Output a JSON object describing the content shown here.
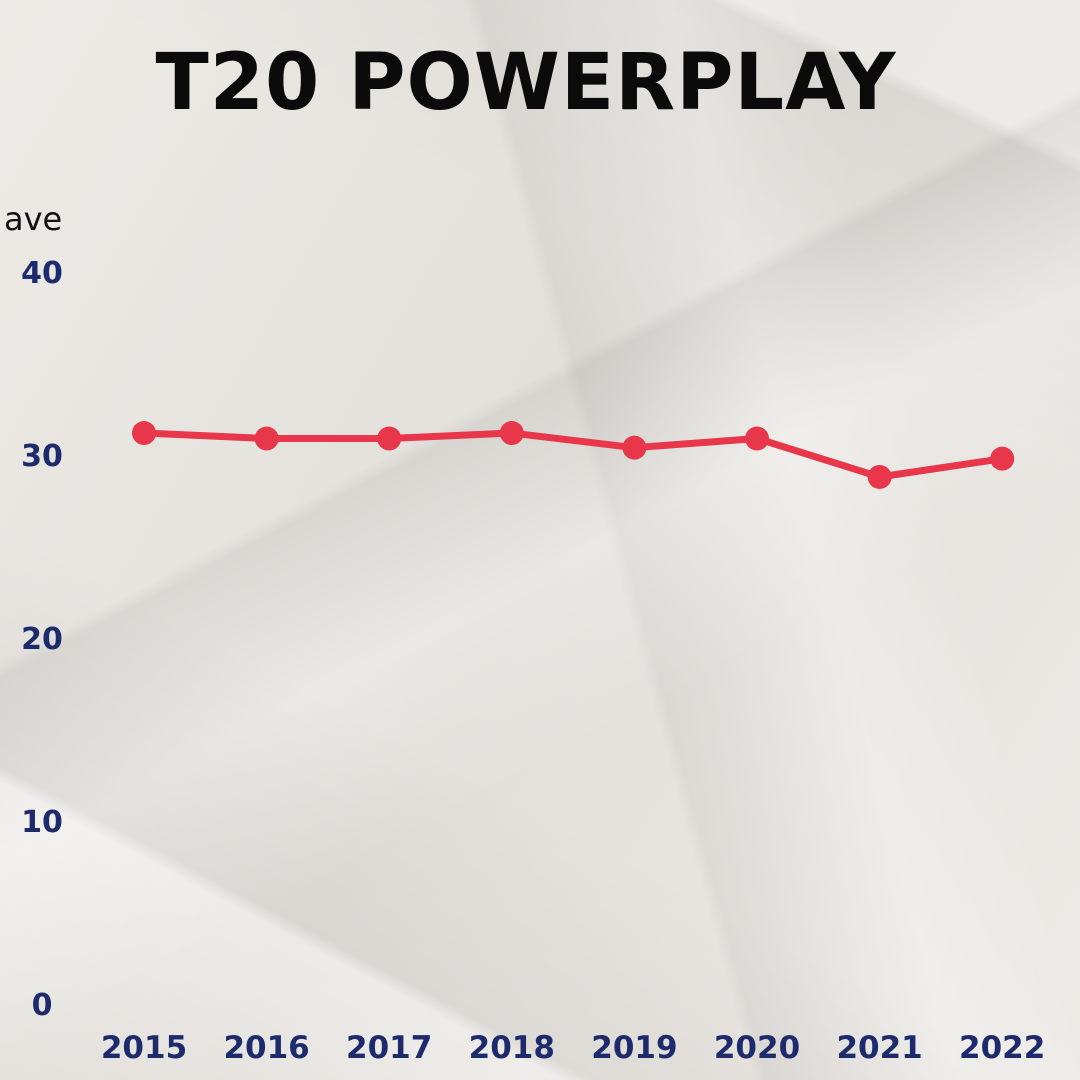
{
  "chart_data": {
    "type": "line",
    "title": "T20 POWERPLAY",
    "ylabel": "ave",
    "xlabel": "",
    "categories": [
      "2015",
      "2016",
      "2017",
      "2018",
      "2019",
      "2020",
      "2021",
      "2022"
    ],
    "series": [
      {
        "values": [
          31.2,
          30.9,
          30.9,
          31.2,
          30.4,
          30.9,
          28.8,
          29.8
        ]
      }
    ],
    "y_ticks": [
      "0",
      "10",
      "20",
      "30",
      "40"
    ],
    "ylim": [
      0,
      40
    ],
    "grid": false,
    "colors": {
      "line": "#e8364a",
      "tick_text": "#1d2a6b",
      "title": "#0b0b0b",
      "background": "#e9e6e1"
    }
  }
}
